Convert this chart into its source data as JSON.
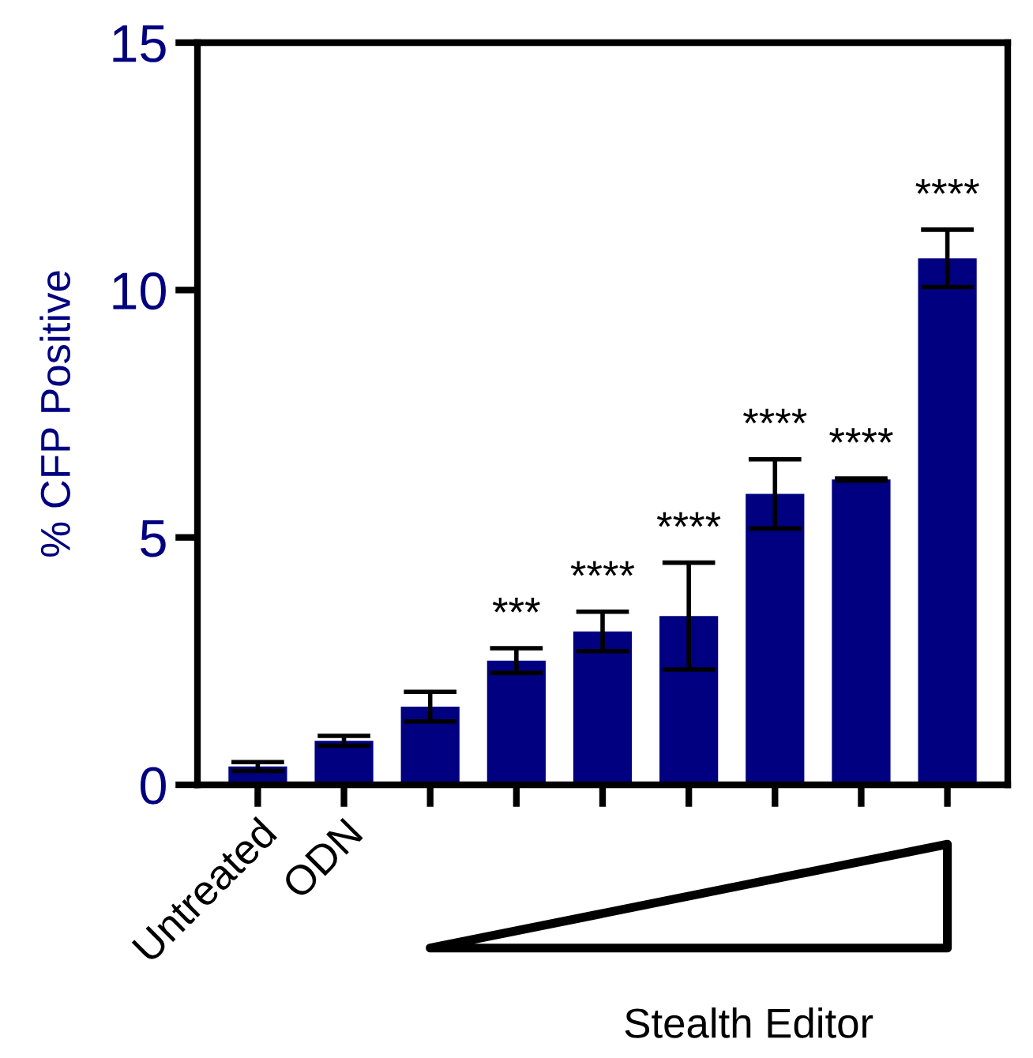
{
  "chart_data": {
    "type": "bar",
    "ylabel": "% CFP Positive",
    "xlabel": "Stealth Editor",
    "categories": [
      "Untreated",
      "ODN",
      null,
      null,
      null,
      null,
      null,
      null,
      null
    ],
    "values": [
      0.37,
      0.89,
      1.58,
      2.51,
      3.1,
      3.41,
      5.88,
      6.17,
      10.64
    ],
    "errors": [
      0.09,
      0.1,
      0.3,
      0.25,
      0.4,
      1.08,
      0.7,
      0.02,
      0.58
    ],
    "value_labels": [
      null,
      null,
      null,
      "***",
      "****",
      "****",
      "****",
      "****",
      "****"
    ],
    "color": "#000080",
    "ylim": [
      0,
      15
    ],
    "yticks": [
      0,
      5,
      10,
      15
    ],
    "grid": false,
    "legend": false
  }
}
